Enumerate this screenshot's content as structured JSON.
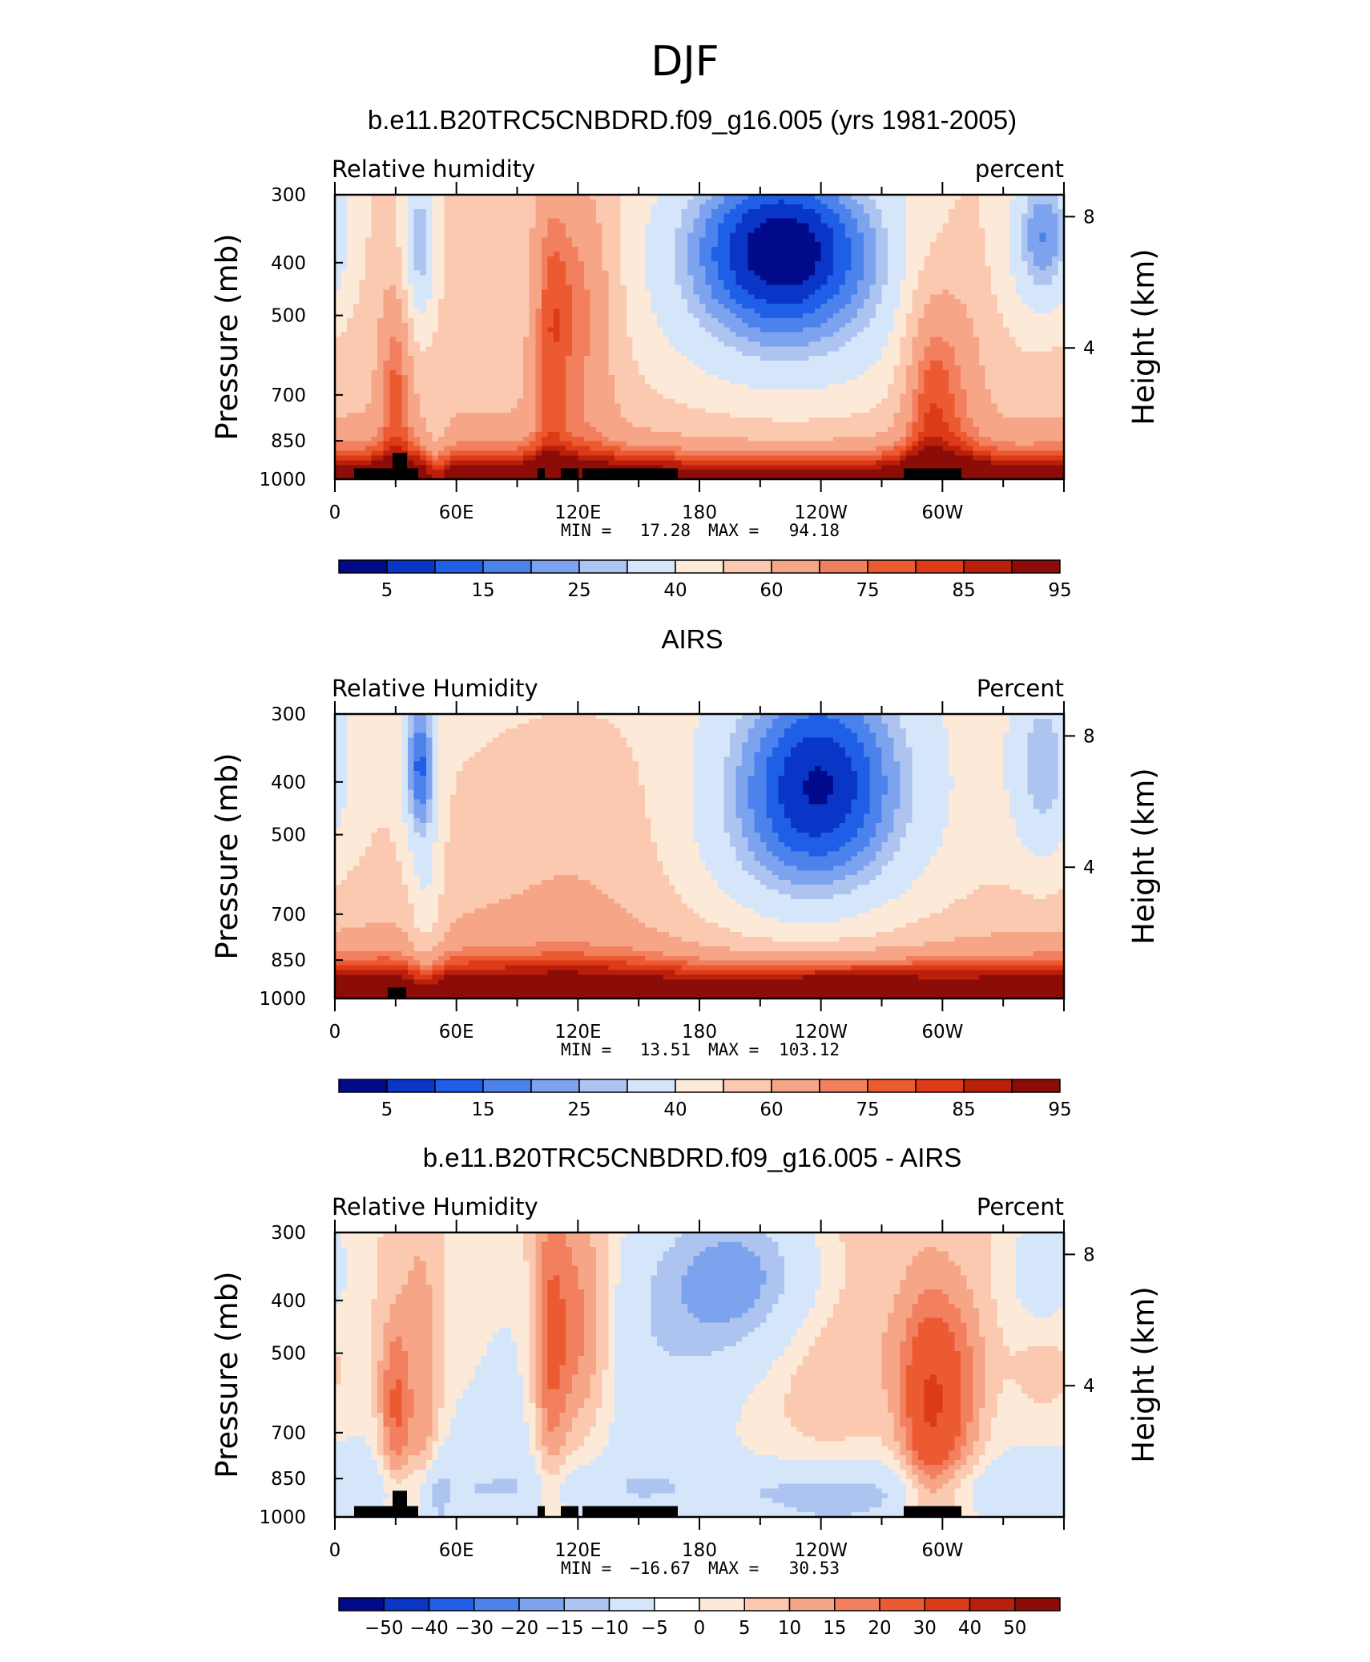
{
  "figure_title": "DJF",
  "chart_data": [
    {
      "type": "heatmap",
      "title": "b.e11.B20TRC5CNBDRD.f09_g16.005 (yrs 1981-2005)",
      "left_label": "Relative humidity",
      "right_label": "percent",
      "ylabel": "Pressure (mb)",
      "y2label": "Height (km)",
      "yticks": [
        "300",
        "400",
        "500",
        "700",
        "850",
        "1000"
      ],
      "y2ticks": [
        "8",
        "4"
      ],
      "xticks": [
        "0",
        "60E",
        "120E",
        "180",
        "120W",
        "60W"
      ],
      "x_range": [
        0,
        360
      ],
      "y_range": [
        1000,
        300
      ],
      "y_scale": "log-pressure",
      "stats": {
        "min_label": "MIN =",
        "min": "17.28",
        "max_label": "MAX =",
        "max": "94.18"
      },
      "colorbar_labels": [
        "5",
        "15",
        "25",
        "40",
        "60",
        "75",
        "85",
        "95"
      ],
      "colorbar_colors": [
        "#000a8a",
        "#0a36c8",
        "#1f5ee6",
        "#4c82ec",
        "#7ea3ee",
        "#adc4f1",
        "#d6e6fa",
        "#fde9d8",
        "#fac9af",
        "#f6a587",
        "#f27f5d",
        "#ec5a31",
        "#dd3a17",
        "#b91f0b",
        "#8c0c08"
      ],
      "field": "model",
      "topography": [
        [
          10,
          950,
          1000
        ],
        [
          30,
          950,
          895
        ],
        [
          41,
          950,
          1000
        ],
        [
          101,
          950,
          1000
        ],
        [
          111,
          950,
          1000
        ],
        [
          162,
          950,
          1000
        ],
        [
          468,
          950,
          1000
        ]
      ]
    },
    {
      "type": "heatmap",
      "title": "AIRS",
      "left_label": "Relative Humidity",
      "right_label": "Percent",
      "ylabel": "Pressure (mb)",
      "y2label": "Height (km)",
      "yticks": [
        "300",
        "400",
        "500",
        "700",
        "850",
        "1000"
      ],
      "y2ticks": [
        "8",
        "4"
      ],
      "xticks": [
        "0",
        "60E",
        "120E",
        "180",
        "120W",
        "60W"
      ],
      "x_range": [
        0,
        360
      ],
      "y_range": [
        1000,
        300
      ],
      "y_scale": "log-pressure",
      "stats": {
        "min_label": "MIN =",
        "min": "13.51",
        "max_label": "MAX =",
        "max": "103.12"
      },
      "colorbar_labels": [
        "5",
        "15",
        "25",
        "40",
        "60",
        "75",
        "85",
        "95"
      ],
      "colorbar_colors": [
        "#000a8a",
        "#0a36c8",
        "#1f5ee6",
        "#4c82ec",
        "#7ea3ee",
        "#adc4f1",
        "#d6e6fa",
        "#fde9d8",
        "#fac9af",
        "#f6a587",
        "#f27f5d",
        "#ec5a31",
        "#dd3a17",
        "#b91f0b",
        "#8c0c08"
      ],
      "field": "obs",
      "topography": [
        [
          27,
          950,
          1000
        ]
      ]
    },
    {
      "type": "heatmap",
      "title": "b.e11.B20TRC5CNBDRD.f09_g16.005 - AIRS",
      "left_label": "Relative Humidity",
      "right_label": "Percent",
      "ylabel": "Pressure (mb)",
      "y2label": "Height (km)",
      "yticks": [
        "300",
        "400",
        "500",
        "700",
        "850",
        "1000"
      ],
      "y2ticks": [
        "8",
        "4"
      ],
      "xticks": [
        "0",
        "60E",
        "120E",
        "180",
        "120W",
        "60W"
      ],
      "x_range": [
        0,
        360
      ],
      "y_range": [
        1000,
        300
      ],
      "y_scale": "log-pressure",
      "stats": {
        "min_label": "MIN =",
        "min": "−16.67",
        "max_label": "MAX =",
        "max": "30.53"
      },
      "colorbar_labels": [
        "−50",
        "−40",
        "−30",
        "−20",
        "−15",
        "−10",
        "−5",
        "0",
        "5",
        "10",
        "15",
        "20",
        "30",
        "40",
        "50"
      ],
      "colorbar_colors": [
        "#000a8a",
        "#0a36c8",
        "#1f5ee6",
        "#4c82ec",
        "#7ea3ee",
        "#adc4f1",
        "#d6e6fa",
        "#ffffff",
        "#fde9d8",
        "#fac9af",
        "#f6a587",
        "#f27f5d",
        "#ec5a31",
        "#dd3a17",
        "#b91f0b",
        "#8c0c08"
      ],
      "field": "diff",
      "topography": [
        [
          10,
          950,
          1000
        ],
        [
          30,
          950,
          895
        ],
        [
          41,
          950,
          1000
        ],
        [
          101,
          950,
          1000
        ],
        [
          111,
          950,
          1000
        ],
        [
          162,
          950,
          1000
        ],
        [
          468,
          950,
          1000
        ]
      ]
    }
  ]
}
